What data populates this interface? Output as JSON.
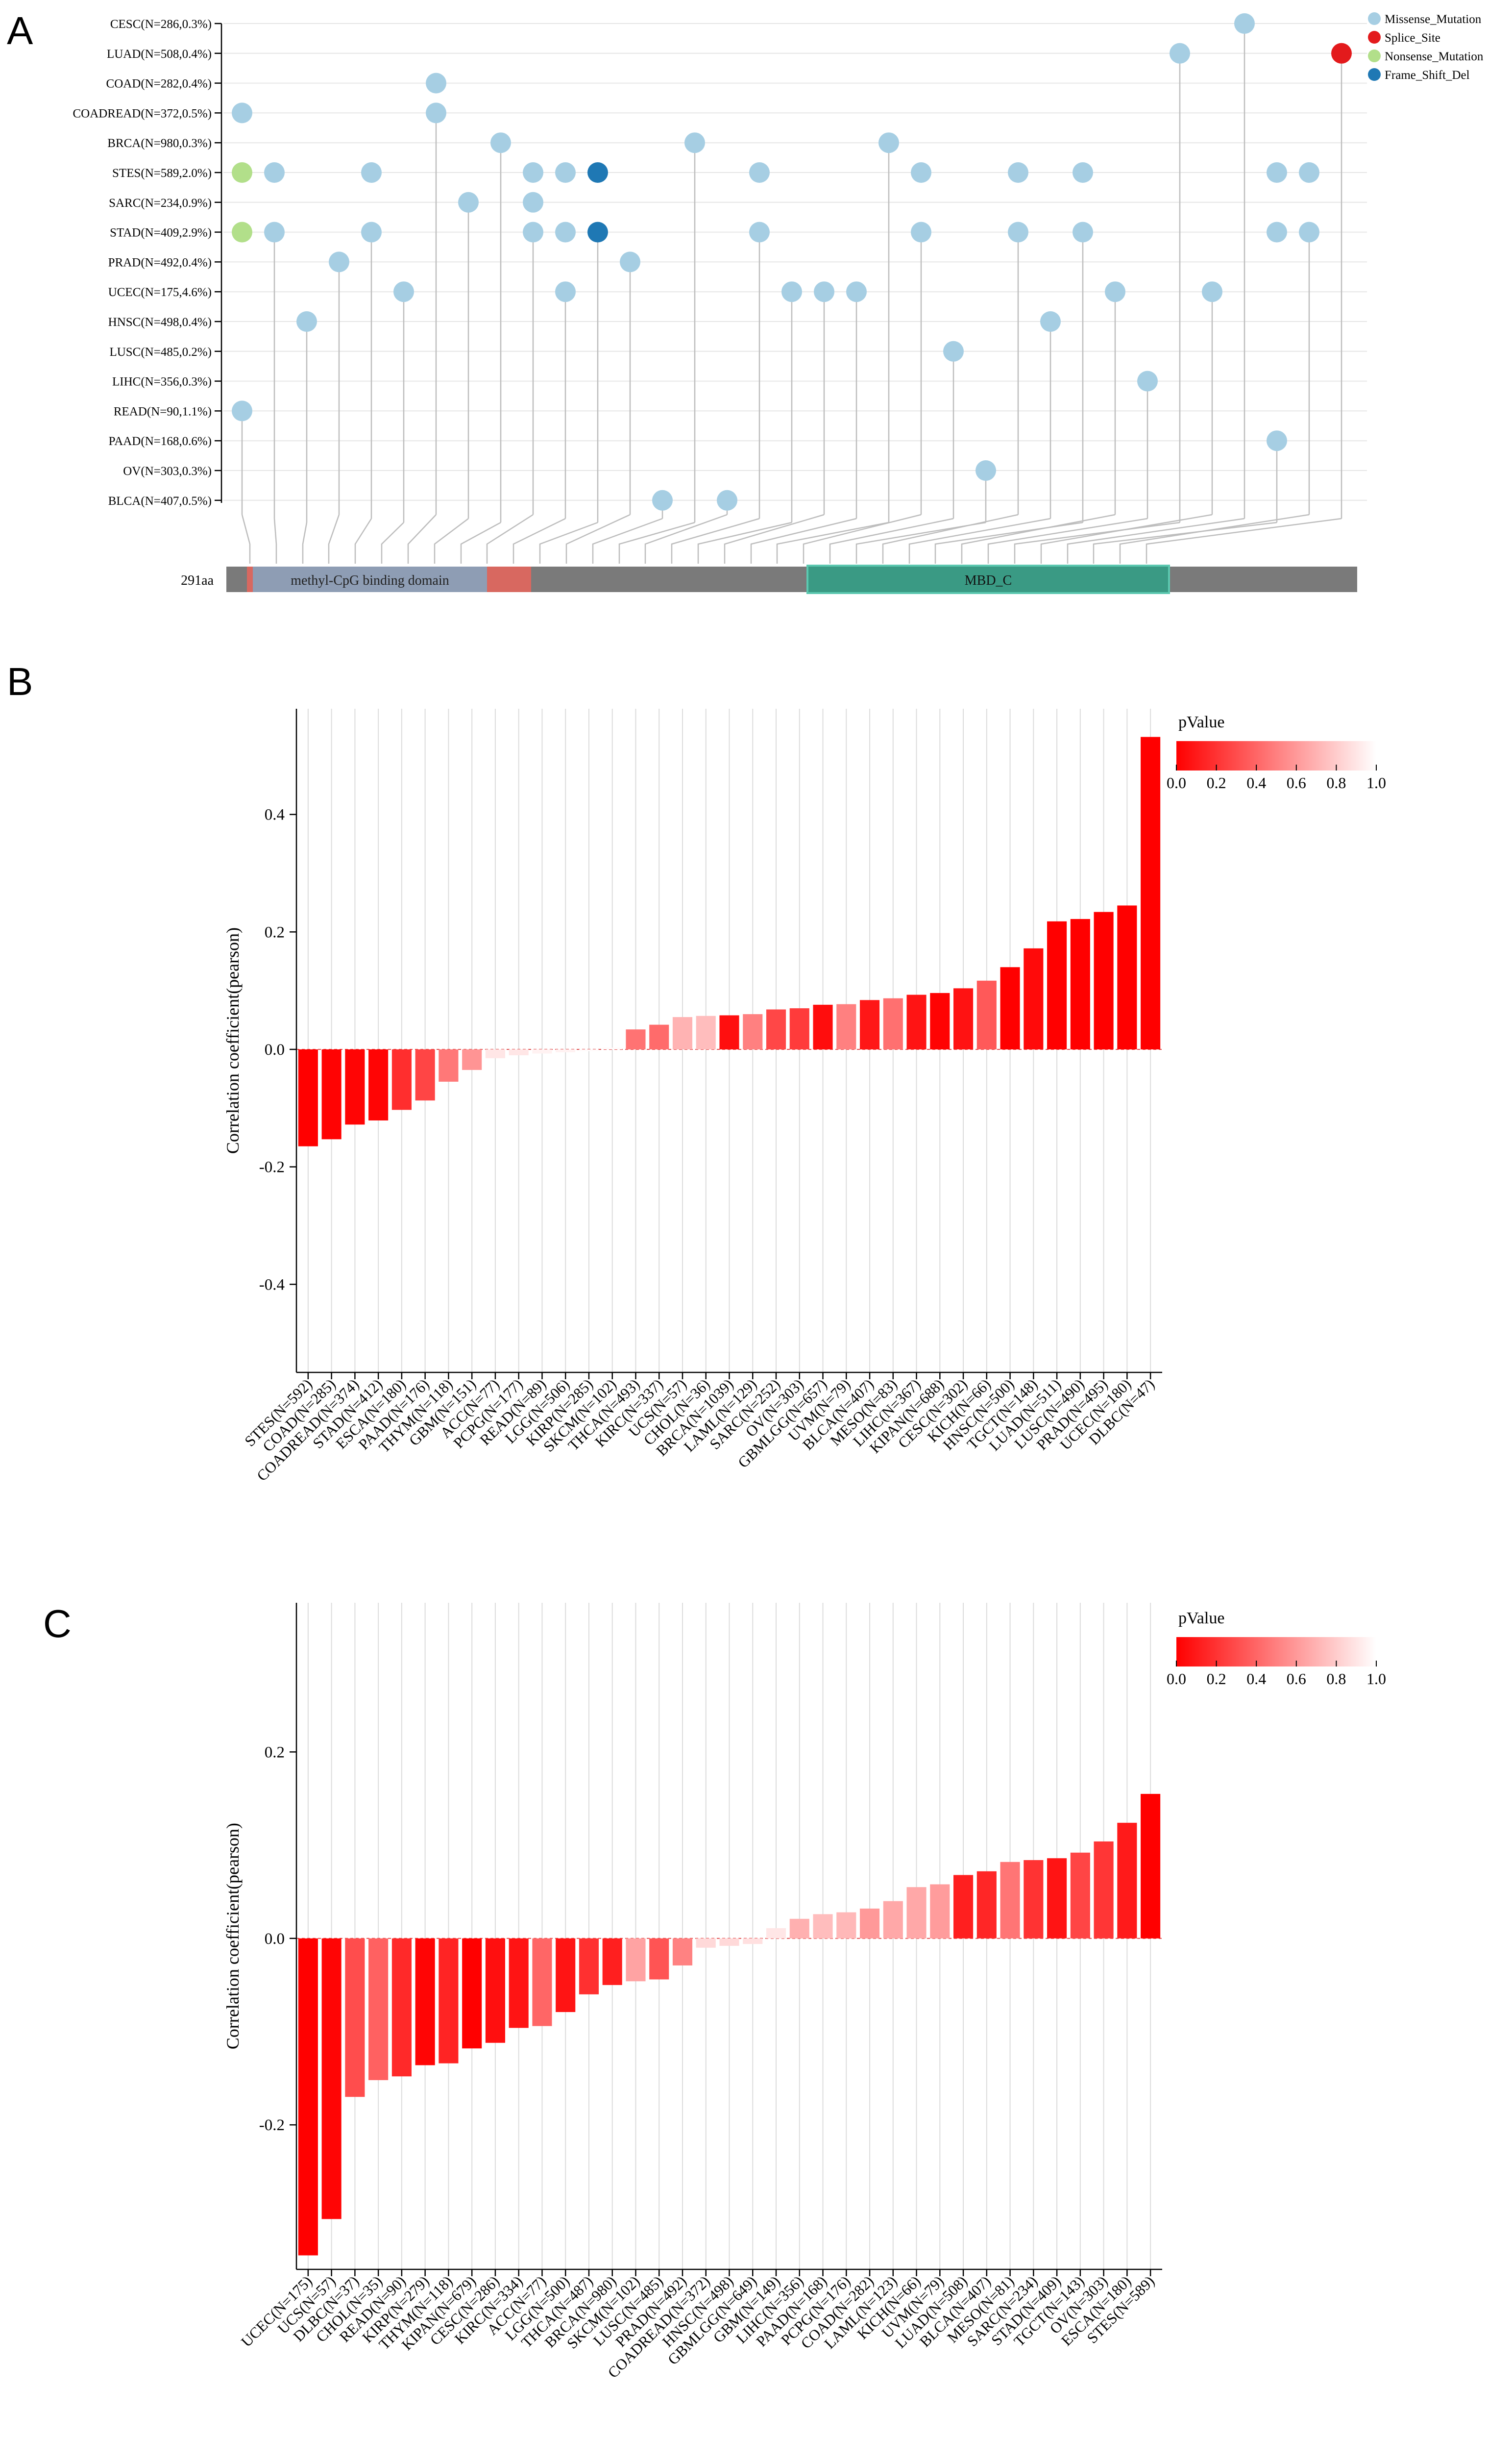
{
  "figure": {
    "panel_labels": [
      "A",
      "B",
      "C"
    ]
  },
  "colors": {
    "missense": "#a6cee3",
    "splice": "#e31a1c",
    "nonsense": "#b2df8a",
    "frameshift": "#1f78b4",
    "protein_bar": "#7a7a7a",
    "domain_methyl": "#8e9db4",
    "domain_mbd": "#3a9a84",
    "stalk": "#bdbdbd"
  },
  "chart_data": [
    {
      "panel": "A",
      "type": "lollipop",
      "legend": [
        "Missense_Mutation",
        "Splice_Site",
        "Nonsense_Mutation",
        "Frame_Shift_Del"
      ],
      "rows": [
        "CESC(N=286,0.3%)",
        "LUAD(N=508,0.4%)",
        "COAD(N=282,0.4%)",
        "COADREAD(N=372,0.5%)",
        "BRCA(N=980,0.3%)",
        "STES(N=589,2.0%)",
        "SARC(N=234,0.9%)",
        "STAD(N=409,2.9%)",
        "PRAD(N=492,0.4%)",
        "UCEC(N=175,4.6%)",
        "HNSC(N=498,0.4%)",
        "LUSC(N=485,0.2%)",
        "LIHC(N=356,0.3%)",
        "READ(N=90,1.1%)",
        "PAAD(N=168,0.6%)",
        "OV(N=303,0.3%)",
        "BLCA(N=407,0.5%)"
      ],
      "protein_length": "291aa",
      "domains": [
        "methyl-CpG binding domain",
        "MBD_C"
      ],
      "mutations": [
        {
          "col": 0,
          "rows": [
            3,
            5,
            7,
            13
          ],
          "types": [
            "Missense_Mutation",
            "Nonsense_Mutation",
            "Nonsense_Mutation",
            "Missense_Mutation"
          ]
        },
        {
          "col": 1,
          "rows": [
            5,
            7
          ],
          "types": [
            "Missense_Mutation",
            "Missense_Mutation"
          ]
        },
        {
          "col": 2,
          "rows": [
            10
          ],
          "types": [
            "Missense_Mutation"
          ]
        },
        {
          "col": 3,
          "rows": [
            8
          ],
          "types": [
            "Missense_Mutation"
          ]
        },
        {
          "col": 4,
          "rows": [
            5,
            7
          ],
          "types": [
            "Missense_Mutation",
            "Missense_Mutation"
          ]
        },
        {
          "col": 5,
          "rows": [
            9
          ],
          "types": [
            "Missense_Mutation"
          ]
        },
        {
          "col": 6,
          "rows": [
            2,
            3
          ],
          "types": [
            "Missense_Mutation",
            "Missense_Mutation"
          ]
        },
        {
          "col": 7,
          "rows": [
            6
          ],
          "types": [
            "Missense_Mutation"
          ]
        },
        {
          "col": 8,
          "rows": [
            4
          ],
          "types": [
            "Missense_Mutation"
          ]
        },
        {
          "col": 9,
          "rows": [
            5,
            6,
            7
          ],
          "types": [
            "Missense_Mutation",
            "Missense_Mutation",
            "Missense_Mutation"
          ]
        },
        {
          "col": 10,
          "rows": [
            5,
            7,
            9
          ],
          "types": [
            "Missense_Mutation",
            "Missense_Mutation",
            "Missense_Mutation"
          ]
        },
        {
          "col": 11,
          "rows": [
            5,
            7
          ],
          "types": [
            "Frame_Shift_Del",
            "Frame_Shift_Del"
          ]
        },
        {
          "col": 12,
          "rows": [
            8
          ],
          "types": [
            "Missense_Mutation"
          ]
        },
        {
          "col": 13,
          "rows": [
            16
          ],
          "types": [
            "Missense_Mutation"
          ]
        },
        {
          "col": 14,
          "rows": [
            4
          ],
          "types": [
            "Missense_Mutation"
          ]
        },
        {
          "col": 15,
          "rows": [
            16
          ],
          "types": [
            "Missense_Mutation"
          ]
        },
        {
          "col": 16,
          "rows": [
            5,
            7
          ],
          "types": [
            "Missense_Mutation",
            "Missense_Mutation"
          ]
        },
        {
          "col": 17,
          "rows": [
            9
          ],
          "types": [
            "Missense_Mutation"
          ]
        },
        {
          "col": 18,
          "rows": [
            9
          ],
          "types": [
            "Missense_Mutation"
          ]
        },
        {
          "col": 19,
          "rows": [
            9
          ],
          "types": [
            "Missense_Mutation"
          ]
        },
        {
          "col": 20,
          "rows": [
            4
          ],
          "types": [
            "Missense_Mutation"
          ]
        },
        {
          "col": 21,
          "rows": [
            5,
            7
          ],
          "types": [
            "Missense_Mutation",
            "Missense_Mutation"
          ]
        },
        {
          "col": 22,
          "rows": [
            11
          ],
          "types": [
            "Missense_Mutation"
          ]
        },
        {
          "col": 23,
          "rows": [
            15
          ],
          "types": [
            "Missense_Mutation"
          ]
        },
        {
          "col": 24,
          "rows": [
            5,
            7
          ],
          "types": [
            "Missense_Mutation",
            "Missense_Mutation"
          ]
        },
        {
          "col": 25,
          "rows": [
            10
          ],
          "types": [
            "Missense_Mutation"
          ]
        },
        {
          "col": 26,
          "rows": [
            5,
            7
          ],
          "types": [
            "Missense_Mutation",
            "Missense_Mutation"
          ]
        },
        {
          "col": 27,
          "rows": [
            9
          ],
          "types": [
            "Missense_Mutation"
          ]
        },
        {
          "col": 28,
          "rows": [
            12
          ],
          "types": [
            "Missense_Mutation"
          ]
        },
        {
          "col": 29,
          "rows": [
            1
          ],
          "types": [
            "Missense_Mutation"
          ]
        },
        {
          "col": 30,
          "rows": [
            9
          ],
          "types": [
            "Missense_Mutation"
          ]
        },
        {
          "col": 31,
          "rows": [
            0
          ],
          "types": [
            "Missense_Mutation"
          ]
        },
        {
          "col": 32,
          "rows": [
            5,
            7,
            14
          ],
          "types": [
            "Missense_Mutation",
            "Missense_Mutation",
            "Missense_Mutation"
          ]
        },
        {
          "col": 33,
          "rows": [
            5,
            7
          ],
          "types": [
            "Missense_Mutation",
            "Missense_Mutation"
          ]
        },
        {
          "col": 34,
          "rows": [
            1
          ],
          "types": [
            "Splice_Site"
          ]
        }
      ]
    },
    {
      "panel": "B",
      "type": "bar",
      "ylabel": "Correlation coefficient(pearson)",
      "ylim": [
        -0.55,
        0.58
      ],
      "yticks": [
        -0.4,
        -0.2,
        0.0,
        0.2,
        0.4
      ],
      "ytick_labels": [
        "-0.4",
        "-0.2",
        "0.0",
        "0.2",
        "0.4"
      ],
      "legend_title": "pValue",
      "legend_ticks": [
        "0.0",
        "0.2",
        "0.4",
        "0.6",
        "0.8",
        "1.0"
      ],
      "categories": [
        "STES(N=592)",
        "COAD(N=285)",
        "COADREAD(N=374)",
        "STAD(N=412)",
        "ESCA(N=180)",
        "PAAD(N=176)",
        "THYM(N=118)",
        "GBM(N=151)",
        "ACC(N=77)",
        "PCPG(N=177)",
        "READ(N=89)",
        "LGG(N=506)",
        "KIRP(N=285)",
        "SKCM(N=102)",
        "THCA(N=493)",
        "KIRC(N=337)",
        "UCS(N=57)",
        "CHOL(N=36)",
        "BRCA(N=1039)",
        "LAML(N=129)",
        "SARC(N=252)",
        "OV(N=303)",
        "GBMLGG(N=657)",
        "UVM(N=79)",
        "BLCA(N=407)",
        "MESO(N=83)",
        "LIHC(N=367)",
        "KIPAN(N=688)",
        "CESC(N=302)",
        "KICH(N=66)",
        "HNSC(N=500)",
        "TGCT(N=148)",
        "LUAD(N=511)",
        "LUSC(N=490)",
        "PRAD(N=495)",
        "UCEC(N=180)",
        "DLBC(N=47)"
      ],
      "values": [
        -0.165,
        -0.153,
        -0.128,
        -0.121,
        -0.103,
        -0.087,
        -0.055,
        -0.035,
        -0.015,
        -0.01,
        -0.007,
        -0.005,
        -0.003,
        0.003,
        0.034,
        0.042,
        0.055,
        0.057,
        0.058,
        0.06,
        0.068,
        0.07,
        0.076,
        0.077,
        0.084,
        0.087,
        0.093,
        0.096,
        0.104,
        0.117,
        0.14,
        0.172,
        0.218,
        0.222,
        0.234,
        0.245,
        0.532
      ],
      "pvalues": [
        0.0,
        0.01,
        0.02,
        0.02,
        0.18,
        0.27,
        0.47,
        0.58,
        0.9,
        0.9,
        0.95,
        0.95,
        0.98,
        0.98,
        0.45,
        0.42,
        0.7,
        0.74,
        0.06,
        0.5,
        0.28,
        0.23,
        0.05,
        0.5,
        0.09,
        0.44,
        0.08,
        0.01,
        0.07,
        0.35,
        0.0,
        0.04,
        0.0,
        0.0,
        0.0,
        0.0,
        0.0
      ]
    },
    {
      "panel": "C",
      "type": "bar",
      "ylabel": "Correlation coefficient(pearson)",
      "ylim": [
        -0.355,
        0.36
      ],
      "yticks": [
        -0.2,
        0.0,
        0.2
      ],
      "ytick_labels": [
        "-0.2",
        "0.0",
        "0.2"
      ],
      "legend_title": "pValue",
      "legend_ticks": [
        "0.0",
        "0.2",
        "0.4",
        "0.6",
        "0.8",
        "1.0"
      ],
      "categories": [
        "UCEC(N=175)",
        "UCS(N=57)",
        "DLBC(N=37)",
        "CHOL(N=35)",
        "READ(N=90)",
        "KIRP(N=279)",
        "THYM(N=118)",
        "KIPAN(N=679)",
        "CESC(N=286)",
        "KIRC(N=334)",
        "ACC(N=77)",
        "LGG(N=500)",
        "THCA(N=487)",
        "BRCA(N=980)",
        "SKCM(N=102)",
        "LUSC(N=485)",
        "PRAD(N=492)",
        "COADREAD(N=372)",
        "HNSC(N=498)",
        "GBMLGG(N=649)",
        "GBM(N=149)",
        "LIHC(N=356)",
        "PAAD(N=168)",
        "PCPG(N=176)",
        "COAD(N=282)",
        "LAML(N=123)",
        "KICH(N=66)",
        "UVM(N=79)",
        "LUAD(N=508)",
        "BLCA(N=407)",
        "MESO(N=81)",
        "SARC(N=234)",
        "STAD(N=409)",
        "TGCT(N=143)",
        "OV(N=303)",
        "ESCA(N=180)",
        "STES(N=589)"
      ],
      "values": [
        -0.34,
        -0.301,
        -0.17,
        -0.152,
        -0.148,
        -0.136,
        -0.134,
        -0.118,
        -0.112,
        -0.096,
        -0.094,
        -0.079,
        -0.06,
        -0.05,
        -0.046,
        -0.044,
        -0.029,
        -0.01,
        -0.008,
        -0.006,
        0.011,
        0.021,
        0.026,
        0.028,
        0.032,
        0.04,
        0.055,
        0.058,
        0.068,
        0.072,
        0.082,
        0.084,
        0.086,
        0.092,
        0.104,
        0.124,
        0.155
      ],
      "pvalues": [
        0.0,
        0.02,
        0.3,
        0.38,
        0.16,
        0.02,
        0.14,
        0.0,
        0.06,
        0.08,
        0.4,
        0.08,
        0.19,
        0.12,
        0.64,
        0.33,
        0.51,
        0.85,
        0.85,
        0.88,
        0.9,
        0.69,
        0.74,
        0.72,
        0.6,
        0.66,
        0.66,
        0.61,
        0.12,
        0.15,
        0.46,
        0.2,
        0.08,
        0.27,
        0.21,
        0.1,
        0.0
      ]
    }
  ]
}
